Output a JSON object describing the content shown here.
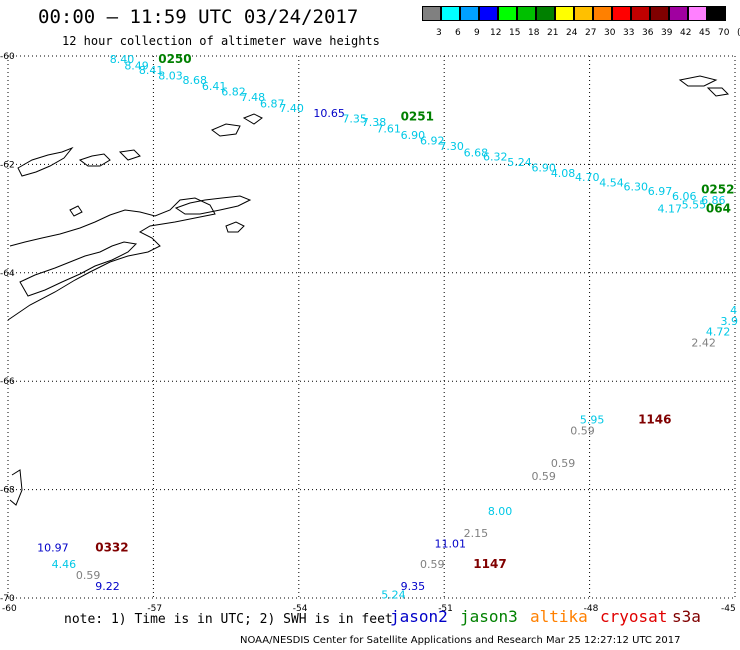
{
  "title": "00:00 – 11:59 UTC 03/24/2017",
  "subtitle": "12 hour collection of altimeter wave heights",
  "colorbar": {
    "labels": [
      "3",
      "6",
      "9",
      "12",
      "15",
      "18",
      "21",
      "24",
      "27",
      "30",
      "33",
      "36",
      "39",
      "42",
      "45",
      "70",
      "(ft)"
    ],
    "colors": [
      "#808080",
      "#00ffff",
      "#00a0ff",
      "#0000ff",
      "#00ff00",
      "#00c000",
      "#008000",
      "#ffff00",
      "#ffc000",
      "#ff8000",
      "#ff0000",
      "#c00000",
      "#800000",
      "#a000a0",
      "#ff80ff",
      "#000000"
    ]
  },
  "axes": {
    "lon_ticks": [
      "-60",
      "-57",
      "-54",
      "-51",
      "-48",
      "-45"
    ],
    "lat_ticks": [
      "-60",
      "-62",
      "-64",
      "-66",
      "-68",
      "-70"
    ],
    "lon_range": [
      -60,
      -45
    ],
    "lat_range": [
      -70,
      -60
    ]
  },
  "map_labels": [
    {
      "text": "8.40",
      "lon": -57.9,
      "lat": -60.13,
      "color": "#00c8e6"
    },
    {
      "text": "0250",
      "lon": -56.9,
      "lat": -60.13,
      "color": "#008000",
      "bold": true
    },
    {
      "text": "8.49",
      "lon": -57.6,
      "lat": -60.25,
      "color": "#00c8e6"
    },
    {
      "text": "8.41",
      "lon": -57.3,
      "lat": -60.33,
      "color": "#00c8e6"
    },
    {
      "text": "8.03",
      "lon": -56.9,
      "lat": -60.43,
      "color": "#00c8e6"
    },
    {
      "text": "8.68",
      "lon": -56.4,
      "lat": -60.52,
      "color": "#00c8e6"
    },
    {
      "text": "6.41",
      "lon": -56.0,
      "lat": -60.63,
      "color": "#00c8e6"
    },
    {
      "text": "6.82",
      "lon": -55.6,
      "lat": -60.73,
      "color": "#00c8e6"
    },
    {
      "text": "7.48",
      "lon": -55.2,
      "lat": -60.83,
      "color": "#00c8e6"
    },
    {
      "text": "6.87",
      "lon": -54.8,
      "lat": -60.95,
      "color": "#00c8e6"
    },
    {
      "text": "7.40",
      "lon": -54.4,
      "lat": -61.03,
      "color": "#00c8e6"
    },
    {
      "text": "10.65",
      "lon": -53.7,
      "lat": -61.13,
      "color": "#0000c8"
    },
    {
      "text": "7.35",
      "lon": -53.1,
      "lat": -61.23,
      "color": "#00c8e6"
    },
    {
      "text": "7.38",
      "lon": -52.7,
      "lat": -61.29,
      "color": "#00c8e6"
    },
    {
      "text": "0251",
      "lon": -51.9,
      "lat": -61.19,
      "color": "#008000",
      "bold": true
    },
    {
      "text": "7.61",
      "lon": -52.4,
      "lat": -61.41,
      "color": "#00c8e6"
    },
    {
      "text": "6.90",
      "lon": -51.9,
      "lat": -61.53,
      "color": "#00c8e6"
    },
    {
      "text": "6.92",
      "lon": -51.5,
      "lat": -61.63,
      "color": "#00c8e6"
    },
    {
      "text": "7.30",
      "lon": -51.1,
      "lat": -61.73,
      "color": "#00c8e6"
    },
    {
      "text": "6.68",
      "lon": -50.6,
      "lat": -61.85,
      "color": "#00c8e6"
    },
    {
      "text": "6.32",
      "lon": -50.2,
      "lat": -61.93,
      "color": "#00c8e6"
    },
    {
      "text": "5.24",
      "lon": -49.7,
      "lat": -62.03,
      "color": "#00c8e6"
    },
    {
      "text": "6.90",
      "lon": -49.2,
      "lat": -62.13,
      "color": "#00c8e6"
    },
    {
      "text": "4.08",
      "lon": -48.8,
      "lat": -62.23,
      "color": "#00c8e6"
    },
    {
      "text": "4.70",
      "lon": -48.3,
      "lat": -62.31,
      "color": "#00c8e6"
    },
    {
      "text": "4.54",
      "lon": -47.8,
      "lat": -62.41,
      "color": "#00c8e6"
    },
    {
      "text": "6.30",
      "lon": -47.3,
      "lat": -62.48,
      "color": "#00c8e6"
    },
    {
      "text": "6.97",
      "lon": -46.8,
      "lat": -62.56,
      "color": "#00c8e6"
    },
    {
      "text": "0252",
      "lon": -45.7,
      "lat": -62.54,
      "color": "#008000",
      "bold": true
    },
    {
      "text": "6.06",
      "lon": -46.3,
      "lat": -62.66,
      "color": "#00c8e6"
    },
    {
      "text": "6.86",
      "lon": -45.7,
      "lat": -62.73,
      "color": "#00c8e6"
    },
    {
      "text": "5.55",
      "lon": -46.1,
      "lat": -62.81,
      "color": "#00c8e6"
    },
    {
      "text": "4.17",
      "lon": -46.6,
      "lat": -62.89,
      "color": "#00c8e6"
    },
    {
      "text": "064",
      "lon": -45.6,
      "lat": -62.89,
      "color": "#008000",
      "bold": true
    },
    {
      "text": "4",
      "lon": -45.1,
      "lat": -64.76,
      "color": "#00c8e6"
    },
    {
      "text": "3.9",
      "lon": -45.3,
      "lat": -64.96,
      "color": "#00c8e6"
    },
    {
      "text": "4.72",
      "lon": -45.6,
      "lat": -65.16,
      "color": "#00c8e6"
    },
    {
      "text": "2.42",
      "lon": -45.9,
      "lat": -65.36,
      "color": "#808080"
    },
    {
      "text": "5.95",
      "lon": -48.2,
      "lat": -66.78,
      "color": "#00c8e6"
    },
    {
      "text": "1146",
      "lon": -47.0,
      "lat": -66.78,
      "color": "#800000",
      "bold": true
    },
    {
      "text": "0.59",
      "lon": -48.4,
      "lat": -66.98,
      "color": "#808080"
    },
    {
      "text": "0.59",
      "lon": -48.8,
      "lat": -67.58,
      "color": "#808080"
    },
    {
      "text": "0.59",
      "lon": -49.2,
      "lat": -67.82,
      "color": "#808080"
    },
    {
      "text": "8.00",
      "lon": -50.1,
      "lat": -68.47,
      "color": "#00c8e6"
    },
    {
      "text": "2.15",
      "lon": -50.6,
      "lat": -68.87,
      "color": "#808080"
    },
    {
      "text": "11.01",
      "lon": -51.2,
      "lat": -69.07,
      "color": "#0000c8"
    },
    {
      "text": "0.59",
      "lon": -51.5,
      "lat": -69.45,
      "color": "#808080"
    },
    {
      "text": "1147",
      "lon": -50.4,
      "lat": -69.45,
      "color": "#800000",
      "bold": true
    },
    {
      "text": "9.35",
      "lon": -51.9,
      "lat": -69.85,
      "color": "#0000c8"
    },
    {
      "text": "5.24",
      "lon": -52.3,
      "lat": -70.01,
      "color": "#00c8e6"
    },
    {
      "text": "10.97",
      "lon": -59.4,
      "lat": -69.14,
      "color": "#0000c8"
    },
    {
      "text": "0332",
      "lon": -58.2,
      "lat": -69.14,
      "color": "#800000",
      "bold": true
    },
    {
      "text": "4.46",
      "lon": -59.1,
      "lat": -69.45,
      "color": "#00c8e6"
    },
    {
      "text": "0.59",
      "lon": -58.6,
      "lat": -69.65,
      "color": "#808080"
    },
    {
      "text": "9.22",
      "lon": -58.2,
      "lat": -69.85,
      "color": "#0000c8"
    }
  ],
  "legend": {
    "note": "note: 1) Time is in UTC; 2) SWH is in feet",
    "satellites": [
      {
        "name": "jason2",
        "color": "#0000c8"
      },
      {
        "name": "jason3",
        "color": "#008000"
      },
      {
        "name": "altika",
        "color": "#ff8000"
      },
      {
        "name": "cryosat",
        "color": "#e00000"
      },
      {
        "name": "s3a",
        "color": "#800000"
      }
    ]
  },
  "credit": "NOAA/NESDIS Center for Satellite Applications and Research   Mar 25 12:27:12 UTC 2017"
}
